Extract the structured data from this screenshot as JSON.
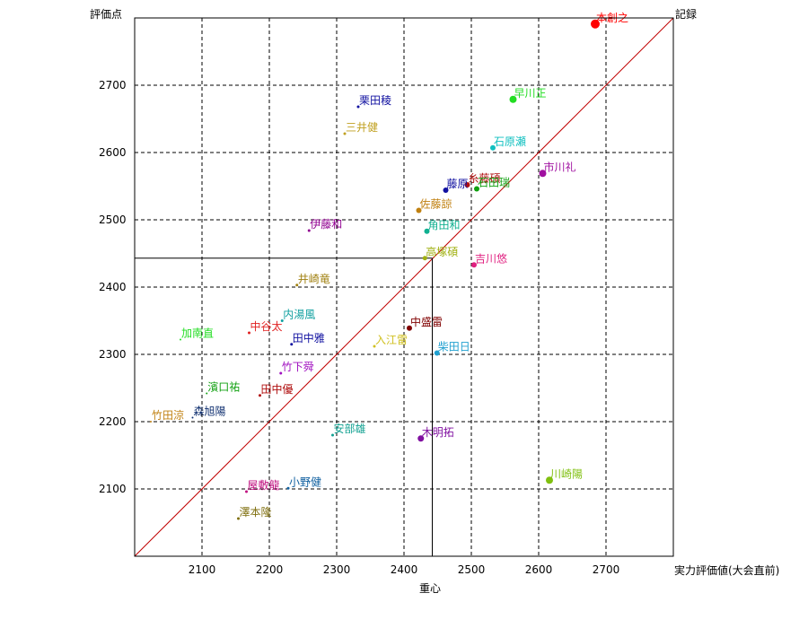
{
  "chart_data": {
    "type": "scatter",
    "title": "",
    "ylabel": "評価点",
    "xlabel_right": "実力評価値(大会直前)",
    "xlabel_bottom": "重心",
    "diagonal_label": "記録",
    "xlim": [
      2000,
      2800
    ],
    "ylim": [
      2000,
      2800
    ],
    "xticks": [
      2100,
      2200,
      2300,
      2400,
      2500,
      2600,
      2700
    ],
    "yticks": [
      2100,
      2200,
      2300,
      2400,
      2500,
      2600,
      2700
    ],
    "grid": true,
    "centroid": {
      "x": 2442,
      "y": 2443
    },
    "points": [
      {
        "label": "本創之",
        "x": 2684,
        "y": 2791,
        "color": "#ff0000",
        "size": 5
      },
      {
        "label": "栗田稜",
        "x": 2332,
        "y": 2668,
        "color": "#1010a0",
        "size": 1.5
      },
      {
        "label": "早川正",
        "x": 2562,
        "y": 2679,
        "color": "#22dd22",
        "size": 4
      },
      {
        "label": "三井健",
        "x": 2312,
        "y": 2628,
        "color": "#c0a020",
        "size": 1.5
      },
      {
        "label": "石原瀬",
        "x": 2532,
        "y": 2607,
        "color": "#10c0c0",
        "size": 3
      },
      {
        "label": "市川礼",
        "x": 2606,
        "y": 2569,
        "color": "#a010a0",
        "size": 4
      },
      {
        "label": "糸藤碩",
        "x": 2494,
        "y": 2552,
        "color": "#b01010",
        "size": 3
      },
      {
        "label": "藤原",
        "x": 2462,
        "y": 2544,
        "color": "#1010a0",
        "size": 3
      },
      {
        "label": "石田瑞",
        "x": 2508,
        "y": 2546,
        "color": "#10a010",
        "size": 3
      },
      {
        "label": "佐藤諒",
        "x": 2422,
        "y": 2514,
        "color": "#c08010",
        "size": 3
      },
      {
        "label": "伊藤和",
        "x": 2259,
        "y": 2484,
        "color": "#900090",
        "size": 1.5
      },
      {
        "label": "角田和",
        "x": 2434,
        "y": 2483,
        "color": "#10b090",
        "size": 3
      },
      {
        "label": "高塚碩",
        "x": 2431,
        "y": 2443,
        "color": "#a0b010",
        "size": 2.5
      },
      {
        "label": "吉川悠",
        "x": 2504,
        "y": 2433,
        "color": "#e02080",
        "size": 3
      },
      {
        "label": "井崎竜",
        "x": 2241,
        "y": 2403,
        "color": "#a08010",
        "size": 1.5
      },
      {
        "label": "内湯風",
        "x": 2219,
        "y": 2350,
        "color": "#10a0a0",
        "size": 1.5
      },
      {
        "label": "中谷太",
        "x": 2170,
        "y": 2332,
        "color": "#e02020",
        "size": 1.5
      },
      {
        "label": "中盛雷",
        "x": 2408,
        "y": 2339,
        "color": "#800000",
        "size": 3
      },
      {
        "label": "加南直",
        "x": 2068,
        "y": 2322,
        "color": "#22dd22",
        "size": 1
      },
      {
        "label": "田中雅",
        "x": 2233,
        "y": 2315,
        "color": "#1010a0",
        "size": 1.5
      },
      {
        "label": "入江雷",
        "x": 2356,
        "y": 2312,
        "color": "#d0c020",
        "size": 1.5
      },
      {
        "label": "柴田日",
        "x": 2449,
        "y": 2302,
        "color": "#20a0d0",
        "size": 3
      },
      {
        "label": "竹下舜",
        "x": 2217,
        "y": 2272,
        "color": "#a010c0",
        "size": 1.5
      },
      {
        "label": "田中優",
        "x": 2186,
        "y": 2239,
        "color": "#b01010",
        "size": 1.5
      },
      {
        "label": "濱口祐",
        "x": 2107,
        "y": 2242,
        "color": "#10a010",
        "size": 1
      },
      {
        "label": "森旭陽",
        "x": 2086,
        "y": 2206,
        "color": "#103070",
        "size": 1
      },
      {
        "label": "竹田涼",
        "x": 2024,
        "y": 2200,
        "color": "#c08010",
        "size": 1
      },
      {
        "label": "安部雄",
        "x": 2294,
        "y": 2180,
        "color": "#10a090",
        "size": 1.5
      },
      {
        "label": "木明拓",
        "x": 2425,
        "y": 2175,
        "color": "#8010a0",
        "size": 3.5
      },
      {
        "label": "川崎陽",
        "x": 2616,
        "y": 2113,
        "color": "#80c010",
        "size": 4
      },
      {
        "label": "小野健",
        "x": 2228,
        "y": 2101,
        "color": "#1060a0",
        "size": 1.5
      },
      {
        "label": "屋敷龍",
        "x": 2166,
        "y": 2096,
        "color": "#c01080",
        "size": 1.5
      },
      {
        "label": "澤本隆",
        "x": 2154,
        "y": 2056,
        "color": "#807010",
        "size": 1.5
      }
    ]
  }
}
